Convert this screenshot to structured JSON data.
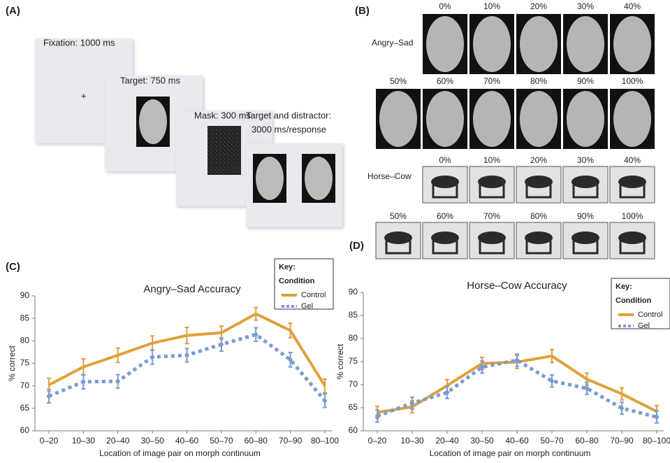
{
  "panels": {
    "a": "(A)",
    "b": "(B)",
    "c": "(C)",
    "d": "(D)"
  },
  "procedure": {
    "fixation_label": "Fixation: 1000 ms",
    "fixation_cross": "+",
    "target_label": "Target: 750 ms",
    "mask_label": "Mask: 300 ms",
    "choice_label": [
      "Target and distractor:",
      "3000 ms/response"
    ]
  },
  "morphs": [
    {
      "label": "Angry–Sad",
      "kind": "face",
      "rows": [
        [
          "0%",
          "10%",
          "20%",
          "30%",
          "40%"
        ],
        [
          "50%",
          "60%",
          "70%",
          "80%",
          "90%",
          "100%"
        ]
      ]
    },
    {
      "label": "Horse–Cow",
      "kind": "animal",
      "rows": [
        [
          "0%",
          "10%",
          "20%",
          "30%",
          "40%"
        ],
        [
          "50%",
          "60%",
          "70%",
          "80%",
          "90%",
          "100%"
        ]
      ]
    }
  ],
  "chart_data": [
    {
      "type": "line",
      "title": "Angry–Sad Accuracy",
      "x_label": "Location of image pair on morph continuum",
      "y_label": "% correct",
      "categories": [
        "0–20",
        "10–30",
        "20–40",
        "30–50",
        "40–60",
        "50–70",
        "60–80",
        "70–90",
        "80–100"
      ],
      "ylim": [
        60,
        90
      ],
      "yticks": [
        60,
        65,
        70,
        75,
        80,
        85,
        90
      ],
      "legend_title": [
        "Key:",
        "Condition"
      ],
      "series": [
        {
          "name": "Control",
          "color": "#dfa03c",
          "dashed": false,
          "values": [
            70.2,
            74.2,
            76.8,
            79.5,
            81.2,
            81.8,
            86.0,
            82.3,
            70.0
          ],
          "errors": [
            1.5,
            1.8,
            1.6,
            1.6,
            1.8,
            1.5,
            1.4,
            1.6,
            1.5
          ]
        },
        {
          "name": "Gel",
          "color": "#7b9bd1",
          "dashed": true,
          "values": [
            67.7,
            70.9,
            71.0,
            76.4,
            76.8,
            79.2,
            81.4,
            75.8,
            66.7
          ],
          "errors": [
            1.5,
            1.6,
            1.5,
            1.6,
            1.5,
            1.5,
            1.5,
            1.6,
            1.5
          ]
        }
      ]
    },
    {
      "type": "line",
      "title": "Horse–Cow Accuracy",
      "x_label": "Location of image pair on morph continuum",
      "y_label": "% correct",
      "categories": [
        "0–20",
        "10–30",
        "20–40",
        "30–50",
        "40–60",
        "50–70",
        "60–80",
        "70–90",
        "80–100"
      ],
      "ylim": [
        60,
        90
      ],
      "yticks": [
        60,
        65,
        70,
        75,
        80,
        85,
        90
      ],
      "legend_title": [
        "Key:",
        "Condition"
      ],
      "series": [
        {
          "name": "Control",
          "color": "#dfa03c",
          "dashed": false,
          "values": [
            64.0,
            65.2,
            69.8,
            74.6,
            74.9,
            76.2,
            71.2,
            68.0,
            64.2
          ],
          "errors": [
            1.3,
            1.3,
            1.3,
            1.3,
            1.4,
            1.4,
            1.3,
            1.3,
            1.3
          ]
        },
        {
          "name": "Gel",
          "color": "#7b9bd1",
          "dashed": true,
          "values": [
            63.2,
            66.0,
            68.3,
            73.8,
            75.3,
            70.8,
            69.2,
            64.9,
            63.0
          ],
          "errors": [
            1.3,
            1.3,
            1.3,
            1.3,
            1.3,
            1.3,
            1.3,
            1.3,
            1.3
          ]
        }
      ]
    }
  ]
}
